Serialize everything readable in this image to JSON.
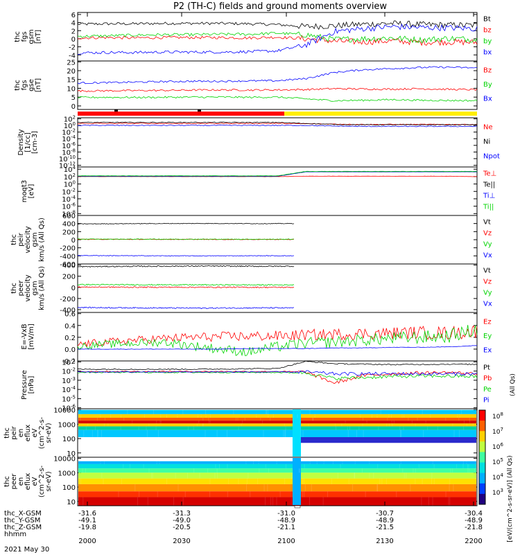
{
  "title": "P2 (TH-C) fields and ground moments overview",
  "date_label": "2021 May 30",
  "colors": {
    "black": "#000000",
    "red": "#ff0000",
    "green": "#00d400",
    "blue": "#0000ff",
    "yellow": "#ffee00"
  },
  "chart_data": [
    {
      "type": "line",
      "id": "fgs_gsm",
      "ylabel": [
        "thc",
        "fgs",
        "gsm",
        "[nT]"
      ],
      "yticks": [
        "6",
        "4",
        "2",
        "0",
        "-2",
        "-4"
      ],
      "ylim": [
        -5.5,
        6.5
      ],
      "series": [
        {
          "name": "Bt",
          "color": "black",
          "values": [
            3.6,
            3.7,
            3.7,
            3.8,
            3.8,
            3.8,
            3.7,
            3.5,
            3.0,
            3.2,
            3.6,
            3.8,
            3.5,
            3.4,
            3.3
          ]
        },
        {
          "name": "bz",
          "color": "red",
          "values": [
            0.2,
            0.3,
            0.2,
            0.3,
            0.3,
            0.3,
            0.2,
            0.4,
            0.0,
            -0.6,
            -0.8,
            -0.5,
            -0.9,
            -0.8,
            -0.9
          ]
        },
        {
          "name": "by",
          "color": "green",
          "values": [
            0.6,
            0.7,
            0.9,
            1.0,
            1.0,
            1.1,
            1.1,
            1.4,
            1.0,
            -0.2,
            0.0,
            0.2,
            -0.3,
            0.1,
            -0.2
          ]
        },
        {
          "name": "bx",
          "color": "blue",
          "values": [
            -3.5,
            -3.4,
            -3.4,
            -3.3,
            -3.3,
            -3.3,
            -3.2,
            -3.0,
            -1.5,
            1.8,
            2.5,
            3.0,
            2.8,
            2.7,
            2.5
          ]
        }
      ]
    },
    {
      "type": "line",
      "id": "fgs_gse",
      "ylabel": [
        "thc",
        "fgs",
        "gse",
        "[nT]"
      ],
      "yticks": [
        "25",
        "20",
        "15",
        "10",
        "5",
        "0"
      ],
      "ylim": [
        -2,
        25.5
      ],
      "series": [
        {
          "name": "Bz",
          "color": "red",
          "values": [
            8.5,
            8.6,
            8.7,
            8.8,
            9.0,
            9.1,
            9.0,
            9.1,
            9.3,
            9.8,
            9.6,
            9.5,
            9.8,
            9.4,
            9.2
          ]
        },
        {
          "name": "By",
          "color": "green",
          "values": [
            4.8,
            4.9,
            4.8,
            4.9,
            5.0,
            5.0,
            4.9,
            5.0,
            4.0,
            3.0,
            3.2,
            3.6,
            3.2,
            3.1,
            3.0
          ]
        },
        {
          "name": "Bx",
          "color": "blue",
          "values": [
            13.0,
            13.2,
            13.5,
            13.8,
            14.0,
            14.0,
            14.2,
            14.3,
            15.5,
            19.0,
            20.5,
            21.2,
            21.8,
            22.0,
            21.5
          ]
        }
      ]
    },
    {
      "type": "line",
      "id": "density",
      "ylabel": [
        "Density",
        "[1/cc]",
        "[cm-3]"
      ],
      "yticks": [
        "10^2",
        "10^0",
        "10^-2",
        "10^-4",
        "10^-6",
        "10^-8",
        "10^-10",
        "10^-12"
      ],
      "ylim": [
        -12.5,
        2.3
      ],
      "log": true,
      "series": [
        {
          "name": "Ne",
          "color": "red",
          "values": [
            0.6,
            0.6,
            0.6,
            0.6,
            0.6,
            0.6,
            0.6,
            0.6,
            0.5,
            0.4,
            0.3,
            0.3,
            0.3,
            0.3,
            0.3
          ]
        },
        {
          "name": "Ni",
          "color": "black",
          "values": [
            0.9,
            0.9,
            0.9,
            0.9,
            0.9,
            0.9,
            0.9,
            0.9,
            0.6,
            0.3,
            0.2,
            0.2,
            0.2,
            0.2,
            0.2
          ]
        },
        {
          "name": "Npot",
          "color": "blue",
          "values": [
            0.0,
            0.0,
            0.0,
            0.0,
            0.0,
            0.0,
            0.0,
            0.0,
            0.0,
            -0.2,
            -0.3,
            -0.3,
            -0.3,
            -0.3,
            -0.3
          ]
        }
      ]
    },
    {
      "type": "line",
      "id": "temperature",
      "ylabel": [
        "moqt3",
        "[eV]"
      ],
      "yticks": [
        "10^4",
        "10^2",
        "10^0",
        "10^-2",
        "10^-4",
        "10^-6",
        "10^-8"
      ],
      "ylim": [
        -8.5,
        4.6
      ],
      "log": true,
      "series": [
        {
          "name": "Te⊥",
          "color": "red",
          "values": [
            2.0,
            2.0,
            2.0,
            2.0,
            2.0,
            2.0,
            2.0,
            2.0,
            2.1,
            2.1,
            2.1,
            2.1,
            2.1,
            2.1,
            2.0
          ]
        },
        {
          "name": "Te||",
          "color": "black",
          "values": [
            2.1,
            2.1,
            2.1,
            2.1,
            2.1,
            2.1,
            2.1,
            2.1,
            3.3,
            3.3,
            3.3,
            3.3,
            3.3,
            3.3,
            3.3
          ]
        },
        {
          "name": "Ti⊥",
          "color": "blue",
          "values": [
            2.1,
            2.1,
            2.1,
            2.1,
            2.1,
            2.1,
            2.1,
            2.1,
            3.3,
            3.3,
            3.3,
            3.3,
            3.3,
            3.3,
            3.3
          ]
        },
        {
          "name": "Ti||",
          "color": "green",
          "values": [
            2.2,
            2.2,
            2.2,
            2.2,
            2.2,
            2.2,
            2.2,
            2.2,
            3.4,
            3.4,
            3.4,
            3.4,
            3.4,
            3.4,
            3.4
          ]
        }
      ]
    },
    {
      "type": "line",
      "id": "peir_velocity",
      "ylabel": [
        "thc",
        "peir",
        "velocity",
        "gsm",
        "km/s (All Qs)"
      ],
      "yticks": [
        "600",
        "400",
        "200",
        "0",
        "-200",
        "-400",
        "-600"
      ],
      "ylim": [
        -600,
        600
      ],
      "series": [
        {
          "name": "Vt",
          "color": "black",
          "values": [
            390,
            395,
            398,
            400,
            402,
            400,
            398,
            400
          ]
        },
        {
          "name": "Vz",
          "color": "red",
          "values": [
            10,
            9,
            8,
            8,
            7,
            6,
            6,
            5
          ]
        },
        {
          "name": "Vy",
          "color": "green",
          "values": [
            15,
            14,
            14,
            13,
            13,
            12,
            12,
            12
          ]
        },
        {
          "name": "Vx",
          "color": "blue",
          "values": [
            -390,
            -394,
            -397,
            -399,
            -400,
            -398,
            -397,
            -398
          ]
        }
      ]
    },
    {
      "type": "line",
      "id": "peer_velocity",
      "ylabel": [
        "thc",
        "peer",
        "velocity",
        "gsm",
        "km/s (All Qs)"
      ],
      "yticks": [
        "400",
        "200",
        "0",
        "-200",
        "-400"
      ],
      "ylim": [
        -450,
        420
      ],
      "series": [
        {
          "name": "Vt",
          "color": "black",
          "values": [
            370,
            375,
            378,
            380,
            382,
            380,
            378,
            380
          ]
        },
        {
          "name": "Vz",
          "color": "red",
          "values": [
            5,
            4,
            3,
            3,
            2,
            2,
            1,
            1
          ]
        },
        {
          "name": "Vy",
          "color": "green",
          "values": [
            50,
            48,
            47,
            46,
            45,
            45,
            44,
            44
          ]
        },
        {
          "name": "Vx",
          "color": "blue",
          "values": [
            -360,
            -365,
            -368,
            -370,
            -372,
            -370,
            -368,
            -370
          ]
        }
      ]
    },
    {
      "type": "line",
      "id": "efield",
      "ylabel": [
        "E=-VxB",
        "[mV/m]"
      ],
      "yticks": [
        "0.6",
        "0.4",
        "0.2",
        "0.0",
        "-0.2"
      ],
      "ylim": [
        -0.2,
        0.62
      ],
      "series": [
        {
          "name": "Ez",
          "color": "red",
          "values": [
            0.08,
            0.12,
            0.15,
            0.18,
            0.2,
            0.21,
            0.22,
            0.22,
            0.24,
            0.25,
            0.26,
            0.27,
            0.28,
            0.27,
            0.3
          ]
        },
        {
          "name": "Ey",
          "color": "green",
          "values": [
            0.05,
            0.08,
            0.1,
            0.12,
            0.06,
            0.0,
            -0.05,
            0.04,
            0.1,
            0.12,
            0.15,
            0.18,
            0.2,
            0.22,
            0.33
          ]
        },
        {
          "name": "Ex",
          "color": "blue",
          "values": [
            0.0,
            0.0,
            0.0,
            0.0,
            0.0,
            0.0,
            0.01,
            0.01,
            0.01,
            0.02,
            0.02,
            0.03,
            0.03,
            0.04,
            0.06
          ]
        }
      ]
    },
    {
      "type": "line",
      "id": "pressure",
      "ylabel": [
        "Pressure",
        "[nPa]"
      ],
      "yticks": [
        "10^-1",
        "10^-2",
        "10^-3",
        "10^-4",
        "10^-5",
        "10^-6"
      ],
      "ylim": [
        -6.1,
        -0.9
      ],
      "log": true,
      "right_label": "(All Qs)",
      "series": [
        {
          "name": "Pt",
          "color": "black",
          "values": [
            -1.8,
            -1.8,
            -1.8,
            -1.8,
            -1.8,
            -1.78,
            -1.75,
            -1.72,
            -0.95,
            -1.2,
            -1.25,
            -1.3,
            -1.28,
            -1.25,
            -1.28
          ]
        },
        {
          "name": "Pb",
          "color": "red",
          "values": [
            -2.05,
            -2.05,
            -2.05,
            -2.05,
            -2.05,
            -2.05,
            -2.05,
            -2.05,
            -2.1,
            -3.3,
            -2.5,
            -2.3,
            -2.2,
            -2.15,
            -2.3
          ]
        },
        {
          "name": "Pe",
          "color": "green",
          "values": [
            -2.15,
            -2.15,
            -2.15,
            -2.15,
            -2.15,
            -2.15,
            -2.15,
            -2.15,
            -2.2,
            -2.8,
            -2.7,
            -2.6,
            -2.55,
            -2.55,
            -2.6
          ]
        },
        {
          "name": "Pi",
          "color": "blue",
          "values": [
            -2.1,
            -2.1,
            -2.1,
            -2.1,
            -2.1,
            -2.1,
            -2.1,
            -2.1,
            -2.1,
            -2.3,
            -2.3,
            -2.3,
            -2.3,
            -2.3,
            -2.3
          ]
        }
      ]
    },
    {
      "type": "heatmap",
      "id": "peir_spectrogram",
      "ylabel": [
        "thc",
        "peir",
        "en",
        "eflux",
        "eV",
        "(cm^2-s-",
        "sr-eV)"
      ],
      "yticks": [
        "10000",
        "1000",
        "100",
        "10"
      ],
      "ylim": [
        5,
        12000
      ],
      "log": true
    },
    {
      "type": "heatmap",
      "id": "peer_spectrogram",
      "ylabel": [
        "thc",
        "peer",
        "en",
        "eflux",
        "eV",
        "(cm^2-s-",
        "sr-eV)"
      ],
      "yticks": [
        "10000",
        "1000",
        "100",
        "10"
      ],
      "ylim": [
        5,
        12000
      ],
      "log": true
    }
  ],
  "colorbar": {
    "ticks": [
      "10^8",
      "10^7",
      "10^6",
      "10^5",
      "10^4",
      "10^3"
    ],
    "label": "[eV/(cm^2-s-sr-eV)] (All Qs)"
  },
  "x_axis": {
    "time_ticks": [
      "2000",
      "2030",
      "2100",
      "2130",
      "2200"
    ],
    "rows": [
      {
        "label": "thc_X-GSM",
        "values": [
          "-31.6",
          "-31.3",
          "-31.0",
          "-30.7",
          "-30.4"
        ]
      },
      {
        "label": "thc_Y-GSM",
        "values": [
          "-49.1",
          "-49.0",
          "-48.9",
          "-48.9",
          "-48.9"
        ]
      },
      {
        "label": "thc_Z-GSM",
        "values": [
          "-19.8",
          "-20.5",
          "-21.1",
          "-21.5",
          "-21.8"
        ]
      },
      {
        "label": "hhmm",
        "values": []
      }
    ]
  }
}
